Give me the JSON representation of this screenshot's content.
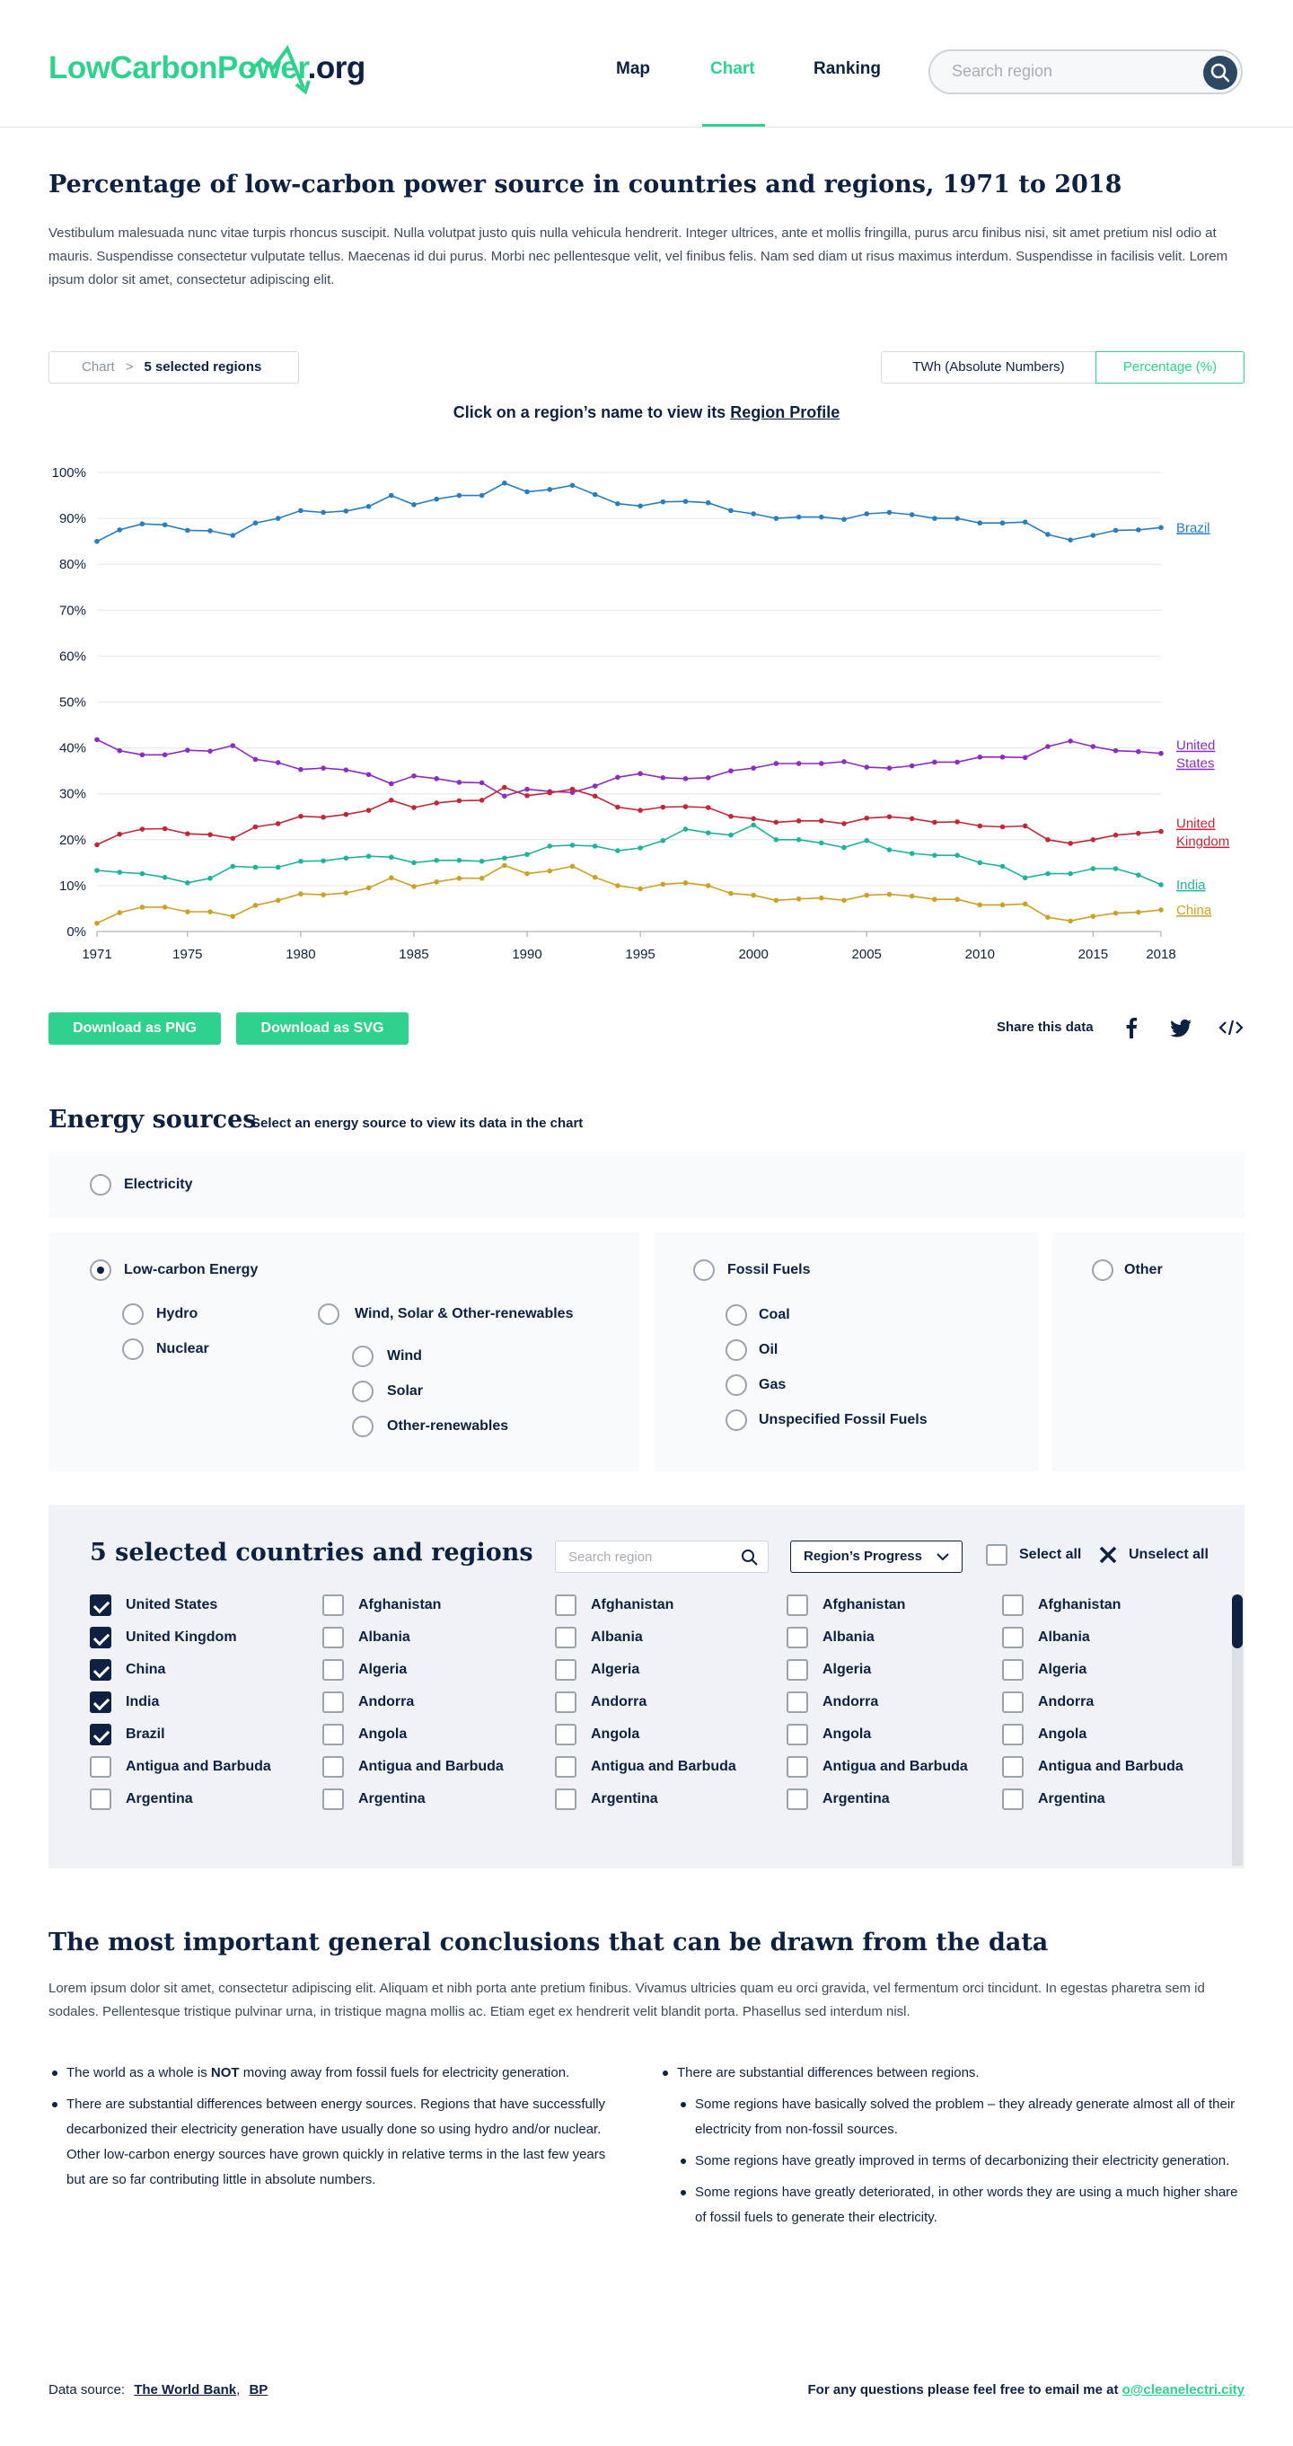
{
  "header": {
    "logo_green": "LowCarbonPower",
    "logo_dark": ".org",
    "nav": [
      {
        "label": "Map"
      },
      {
        "label": "Chart"
      },
      {
        "label": "Ranking"
      }
    ],
    "search_placeholder": "Search region"
  },
  "intro": {
    "title": "Percentage of low-carbon power source in countries and regions, 1971 to 2018",
    "text": "Vestibulum malesuada nunc vitae turpis rhoncus suscipit. Nulla volutpat justo quis nulla vehicula hendrerit. Integer ultrices, ante et mollis fringilla, purus arcu finibus nisi, sit amet pretium nisl odio at mauris. Suspendisse consectetur vulputate tellus. Maecenas id dui purus. Morbi nec pellentesque velit, vel finibus felis. Nam sed diam ut risus maximus interdum. Suspendisse in facilisis velit. Lorem ipsum dolor sit amet, consectetur adipiscing elit."
  },
  "controls": {
    "crumb_root": "Chart",
    "crumb_sep": ">",
    "crumb_current": "5 selected regions",
    "toggle_abs": "TWh (Absolute Numbers)",
    "toggle_pct": "Percentage (%)",
    "hint_prefix": "Click on a region’s name to view its ",
    "hint_link": "Region Profile"
  },
  "chart_data": {
    "type": "line",
    "x": [
      1971,
      1972,
      1973,
      1974,
      1975,
      1976,
      1977,
      1978,
      1979,
      1980,
      1981,
      1982,
      1983,
      1984,
      1985,
      1986,
      1987,
      1988,
      1989,
      1990,
      1991,
      1992,
      1993,
      1994,
      1995,
      1996,
      1997,
      1998,
      1999,
      2000,
      2001,
      2002,
      2003,
      2004,
      2005,
      2006,
      2007,
      2008,
      2009,
      2010,
      2011,
      2012,
      2013,
      2014,
      2015,
      2016,
      2017,
      2018
    ],
    "x_ticks": [
      "1971",
      "1975",
      "1980",
      "1985",
      "1990",
      "1995",
      "2000",
      "2005",
      "2010",
      "2015",
      "2018"
    ],
    "y_ticks": [
      "0%",
      "10%",
      "20%",
      "30%",
      "40%",
      "50%",
      "60%",
      "70%",
      "80%",
      "90%",
      "100%"
    ],
    "ylim": [
      0,
      100
    ],
    "grid": true,
    "series": [
      {
        "name": "Brazil",
        "color": "#2a7dbd",
        "values": [
          85,
          87.5,
          88.8,
          88.6,
          87.4,
          87.3,
          86.3,
          89,
          90,
          91.7,
          91.3,
          91.6,
          92.6,
          95,
          93,
          94.2,
          95,
          95,
          97.7,
          95.8,
          96.3,
          97.2,
          95.2,
          93.2,
          92.7,
          93.6,
          93.7,
          93.4,
          91.7,
          91,
          90,
          90.3,
          90.3,
          89.8,
          91,
          91.3,
          90.8,
          90,
          90,
          89,
          89,
          89.2,
          86.5,
          85.3,
          86.3,
          87.4,
          87.5,
          88
        ],
        "label_lines": [
          "Brazil"
        ]
      },
      {
        "name": "United States",
        "color": "#8b2dbf",
        "values": [
          41.8,
          39.4,
          38.5,
          38.5,
          39.5,
          39.3,
          40.5,
          37.5,
          36.8,
          35.3,
          35.6,
          35.2,
          34.2,
          32.2,
          33.9,
          33.3,
          32.5,
          32.4,
          29.5,
          31,
          30.5,
          30.3,
          31.7,
          33.6,
          34.4,
          33.5,
          33.3,
          33.5,
          35,
          35.6,
          36.6,
          36.6,
          36.6,
          37,
          35.8,
          35.6,
          36.1,
          36.9,
          36.9,
          38,
          38,
          37.9,
          40.3,
          41.5,
          40.3,
          39.4,
          39.2,
          38.8
        ],
        "label_lines": [
          "United",
          "States"
        ]
      },
      {
        "name": "United Kingdom",
        "color": "#c0283a",
        "values": [
          18.9,
          21.2,
          22.3,
          22.4,
          21.3,
          21.1,
          20.3,
          22.8,
          23.5,
          25.1,
          24.9,
          25.5,
          26.4,
          28.6,
          27,
          28,
          28.5,
          28.6,
          31.4,
          29.6,
          30.2,
          31,
          29.5,
          27.1,
          26.4,
          27.1,
          27.2,
          27,
          25.1,
          24.6,
          23.8,
          24.1,
          24.1,
          23.5,
          24.7,
          25,
          24.6,
          23.8,
          23.9,
          23,
          22.8,
          23,
          20,
          19.2,
          20,
          21,
          21.4,
          21.8
        ],
        "label_lines": [
          "United",
          "Kingdom"
        ]
      },
      {
        "name": "India",
        "color": "#20b39a",
        "values": [
          13.3,
          12.9,
          12.6,
          11.8,
          10.6,
          11.6,
          14.2,
          14,
          14,
          15.3,
          15.4,
          16,
          16.4,
          16.2,
          15,
          15.5,
          15.5,
          15.3,
          16,
          16.8,
          18.6,
          18.8,
          18.6,
          17.6,
          18.2,
          19.8,
          22.3,
          21.5,
          21,
          23.2,
          20,
          20,
          19.3,
          18.3,
          19.8,
          17.8,
          17,
          16.6,
          16.6,
          15,
          14.2,
          11.7,
          12.6,
          12.6,
          13.7,
          13.7,
          12.3,
          10.2
        ],
        "label_lines": [
          "India"
        ]
      },
      {
        "name": "China",
        "color": "#c9a227",
        "values": [
          1.8,
          4.1,
          5.3,
          5.3,
          4.3,
          4.3,
          3.3,
          5.7,
          6.8,
          8.2,
          8,
          8.4,
          9.5,
          11.7,
          9.8,
          10.8,
          11.6,
          11.6,
          14.4,
          12.6,
          13.2,
          14.2,
          11.8,
          10,
          9.3,
          10.3,
          10.6,
          10,
          8.3,
          7.9,
          6.8,
          7.1,
          7.3,
          6.8,
          7.9,
          8.1,
          7.7,
          7,
          7,
          5.8,
          5.8,
          6,
          3.1,
          2.3,
          3.3,
          4,
          4.2,
          4.7
        ],
        "label_lines": [
          "China"
        ]
      }
    ]
  },
  "actions": {
    "download_png": "Download as PNG",
    "download_svg": "Download as SVG",
    "share_label": "Share this data"
  },
  "energy": {
    "title": "Energy sources",
    "subtitle": "Select an energy source to view its data in the chart",
    "electricity": "Electricity",
    "low_carbon": "Low-carbon Energy",
    "hydro": "Hydro",
    "nuclear": "Nuclear",
    "wsor": "Wind, Solar & Other-renewables",
    "wind": "Wind",
    "solar": "Solar",
    "other_renewables": "Other-renewables",
    "fossil": "Fossil Fuels",
    "coal": "Coal",
    "oil": "Oil",
    "gas": "Gas",
    "unspecified": "Unspecified Fossil Fuels",
    "other": "Other"
  },
  "countries": {
    "title": "5 selected countries and regions",
    "search_placeholder": "Search region",
    "sort_label": "Region’s Progress",
    "select_all": "Select all",
    "unselect_all": "Unselect all",
    "columns": [
      [
        {
          "label": "United States",
          "checked": true
        },
        {
          "label": "United Kingdom",
          "checked": true
        },
        {
          "label": "China",
          "checked": true
        },
        {
          "label": "India",
          "checked": true
        },
        {
          "label": "Brazil",
          "checked": true
        },
        {
          "label": "Antigua and Barbuda",
          "checked": false
        },
        {
          "label": "Argentina",
          "checked": false
        }
      ],
      [
        {
          "label": "Afghanistan",
          "checked": false
        },
        {
          "label": "Albania",
          "checked": false
        },
        {
          "label": "Algeria",
          "checked": false
        },
        {
          "label": "Andorra",
          "checked": false
        },
        {
          "label": "Angola",
          "checked": false
        },
        {
          "label": "Antigua and Barbuda",
          "checked": false
        },
        {
          "label": "Argentina",
          "checked": false
        }
      ],
      [
        {
          "label": "Afghanistan",
          "checked": false
        },
        {
          "label": "Albania",
          "checked": false
        },
        {
          "label": "Algeria",
          "checked": false
        },
        {
          "label": "Andorra",
          "checked": false
        },
        {
          "label": "Angola",
          "checked": false
        },
        {
          "label": "Antigua and Barbuda",
          "checked": false
        },
        {
          "label": "Argentina",
          "checked": false
        }
      ],
      [
        {
          "label": "Afghanistan",
          "checked": false
        },
        {
          "label": "Albania",
          "checked": false
        },
        {
          "label": "Algeria",
          "checked": false
        },
        {
          "label": "Andorra",
          "checked": false
        },
        {
          "label": "Angola",
          "checked": false
        },
        {
          "label": "Antigua and Barbuda",
          "checked": false
        },
        {
          "label": "Argentina",
          "checked": false
        }
      ],
      [
        {
          "label": "Afghanistan",
          "checked": false
        },
        {
          "label": "Albania",
          "checked": false
        },
        {
          "label": "Algeria",
          "checked": false
        },
        {
          "label": "Andorra",
          "checked": false
        },
        {
          "label": "Angola",
          "checked": false
        },
        {
          "label": "Antigua and Barbuda",
          "checked": false
        },
        {
          "label": "Argentina",
          "checked": false
        }
      ]
    ]
  },
  "conclusions": {
    "title": "The most important general conclusions that can be drawn from the data",
    "intro": "Lorem ipsum dolor sit amet, consectetur adipiscing elit. Aliquam et nibh porta ante pretium finibus. Vivamus ultricies quam eu orci gravida, vel fermentum orci tincidunt. In egestas pharetra sem id sodales. Pellentesque tristique pulvinar urna, in tristique magna mollis ac. Etiam eget ex hendrerit velit blandit porta. Phasellus sed interdum nisl.",
    "left_1_pre": "The world as a whole is ",
    "left_1_strong": "NOT",
    "left_1_post": " moving away from fossil fuels for electricity generation.",
    "left_2": "There are substantial differences between energy sources. Regions that have successfully decarbonized their electricity generation have usually done so using hydro and/or nuclear. Other low-carbon energy sources have grown quickly in relative terms in the last few years but are so far contributing little in absolute numbers.",
    "right_1": "There are substantial differences between regions.",
    "right_sub": [
      "Some regions have basically solved the problem – they already generate almost all of their electricity from non-fossil sources.",
      "Some regions have greatly improved in terms of decarbonizing their electricity generation.",
      "Some regions have greatly deteriorated, in other words they are using a much higher share of fossil fuels to generate their electricity."
    ]
  },
  "footer": {
    "source_label": "Data source:",
    "source_1": "The World Bank",
    "source_sep": ",",
    "source_2": "BP",
    "contact_text": "For any questions please feel free to email me at ",
    "contact_email": "o@cleanelectri.city"
  }
}
